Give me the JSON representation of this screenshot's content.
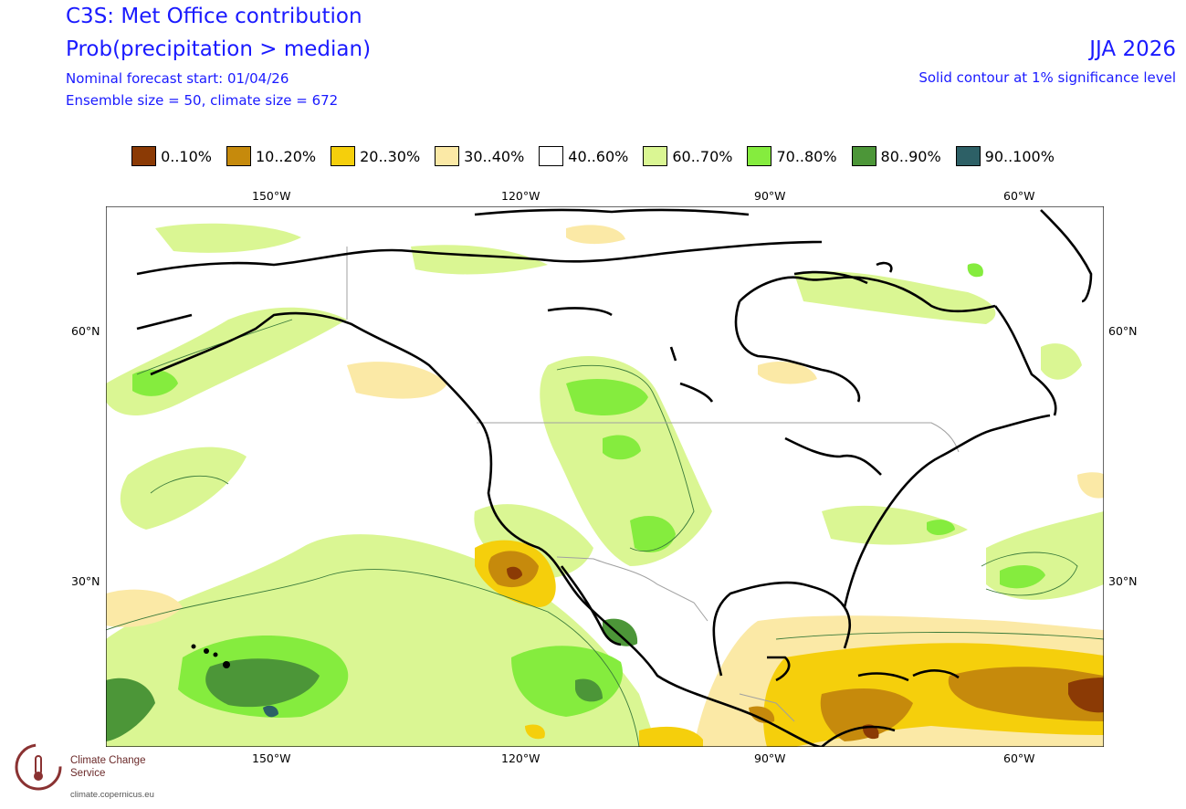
{
  "header": {
    "title": "C3S: Met Office contribution",
    "subtitle": "Prob(precipitation > median)",
    "forecast_start": "Nominal forecast start: 01/04/26",
    "ensemble": "Ensemble size = 50, climate size = 672",
    "season": "JJA 2026",
    "significance": "Solid contour at 1% significance level"
  },
  "legend": [
    {
      "label": "0..10%",
      "color": "#8b3a05"
    },
    {
      "label": "10..20%",
      "color": "#c68a0c"
    },
    {
      "label": "20..30%",
      "color": "#f5cf0c"
    },
    {
      "label": "30..40%",
      "color": "#fbe9a6"
    },
    {
      "label": "40..60%",
      "color": "#ffffff"
    },
    {
      "label": "60..70%",
      "color": "#daf693"
    },
    {
      "label": "70..80%",
      "color": "#85ec3e"
    },
    {
      "label": "80..90%",
      "color": "#4c9638"
    },
    {
      "label": "90..100%",
      "color": "#2d6066"
    }
  ],
  "axes": {
    "lon_ticks": [
      "150°W",
      "120°W",
      "90°W",
      "60°W"
    ],
    "lat_ticks": [
      "60°N",
      "30°N"
    ]
  },
  "logo": {
    "name": "Climate Change Service",
    "url": "climate.copernicus.eu"
  }
}
